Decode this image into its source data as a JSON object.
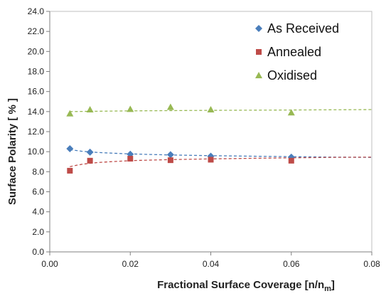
{
  "chart_data": {
    "type": "scatter",
    "title": "",
    "xlabel": "Fractional Surface Coverage [n/n",
    "xlabel_sub": "m",
    "xlabel_end": "]",
    "ylabel": "Surface Polarity [ % ]",
    "xlim": [
      0.0,
      0.08
    ],
    "ylim": [
      0.0,
      24.0
    ],
    "x_ticks": [
      0.0,
      0.02,
      0.04,
      0.06,
      0.08
    ],
    "x_tick_labels": [
      "0.00",
      "0.02",
      "0.04",
      "0.06",
      "0.08"
    ],
    "y_ticks": [
      0,
      2,
      4,
      6,
      8,
      10,
      12,
      14,
      16,
      18,
      20,
      22,
      24
    ],
    "y_tick_labels": [
      "0.0",
      "2.0",
      "4.0",
      "6.0",
      "8.0",
      "10.0",
      "12.0",
      "14.0",
      "16.0",
      "18.0",
      "20.0",
      "22.0",
      "24.0"
    ],
    "grid": false,
    "legend_position": "top-right",
    "series": [
      {
        "name": "As Received",
        "marker": "diamond",
        "color": "#4a7ebb",
        "x": [
          0.005,
          0.01,
          0.02,
          0.03,
          0.04,
          0.06
        ],
        "y": [
          10.3,
          9.95,
          9.75,
          9.7,
          9.55,
          9.45
        ],
        "trend_x": [
          0.005,
          0.008,
          0.012,
          0.016,
          0.02,
          0.025,
          0.03,
          0.04,
          0.05,
          0.06,
          0.07,
          0.08
        ],
        "trend_y": [
          10.2,
          10.04,
          9.92,
          9.84,
          9.78,
          9.72,
          9.67,
          9.6,
          9.55,
          9.5,
          9.46,
          9.43
        ]
      },
      {
        "name": "Annealed",
        "marker": "square",
        "color": "#be4b48",
        "x": [
          0.005,
          0.01,
          0.02,
          0.03,
          0.04,
          0.06
        ],
        "y": [
          8.1,
          9.1,
          9.3,
          9.15,
          9.2,
          9.1
        ],
        "trend_x": [
          0.005,
          0.006,
          0.008,
          0.01,
          0.012,
          0.015,
          0.02,
          0.025,
          0.03,
          0.04,
          0.05,
          0.06,
          0.07,
          0.08
        ],
        "trend_y": [
          8.5,
          8.6,
          8.74,
          8.84,
          8.92,
          9.0,
          9.1,
          9.16,
          9.21,
          9.28,
          9.34,
          9.39,
          9.43,
          9.46
        ]
      },
      {
        "name": "Oxidised",
        "marker": "triangle",
        "color": "#98b954",
        "x": [
          0.005,
          0.01,
          0.02,
          0.03,
          0.04,
          0.06
        ],
        "y": [
          13.8,
          14.2,
          14.25,
          14.45,
          14.2,
          13.9
        ],
        "trend_x": [
          0.005,
          0.02,
          0.04,
          0.06,
          0.08
        ],
        "trend_y": [
          14.0,
          14.07,
          14.12,
          14.16,
          14.2
        ]
      }
    ]
  }
}
